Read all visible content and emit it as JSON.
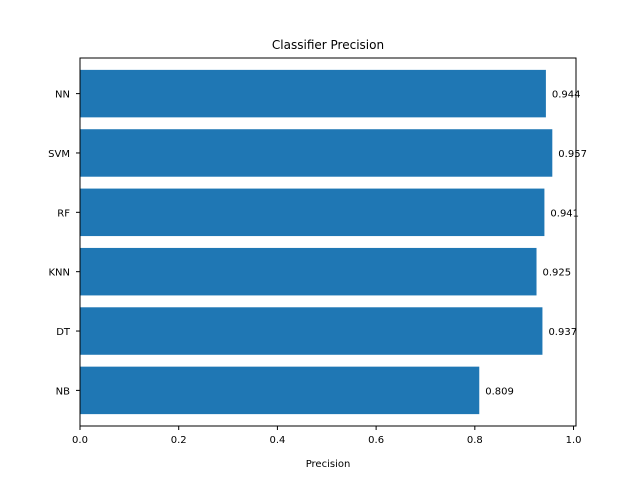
{
  "chart_data": {
    "type": "bar",
    "orientation": "horizontal",
    "title": "Classifier Precision",
    "xlabel": "Precision",
    "ylabel": "",
    "categories": [
      "NN",
      "SVM",
      "RF",
      "KNN",
      "DT",
      "NB"
    ],
    "values": [
      0.944,
      0.957,
      0.941,
      0.925,
      0.937,
      0.809
    ],
    "data_labels": [
      "0.944",
      "0.957",
      "0.941",
      "0.925",
      "0.937",
      "0.809"
    ],
    "xlim": [
      0,
      1.005
    ],
    "xticks": [
      0.0,
      0.2,
      0.4,
      0.6,
      0.8,
      1.0
    ],
    "xtick_labels": [
      "0.0",
      "0.2",
      "0.4",
      "0.6",
      "0.8",
      "1.0"
    ],
    "grid": false,
    "legend": "none",
    "bar_color": "#1f77b4"
  }
}
